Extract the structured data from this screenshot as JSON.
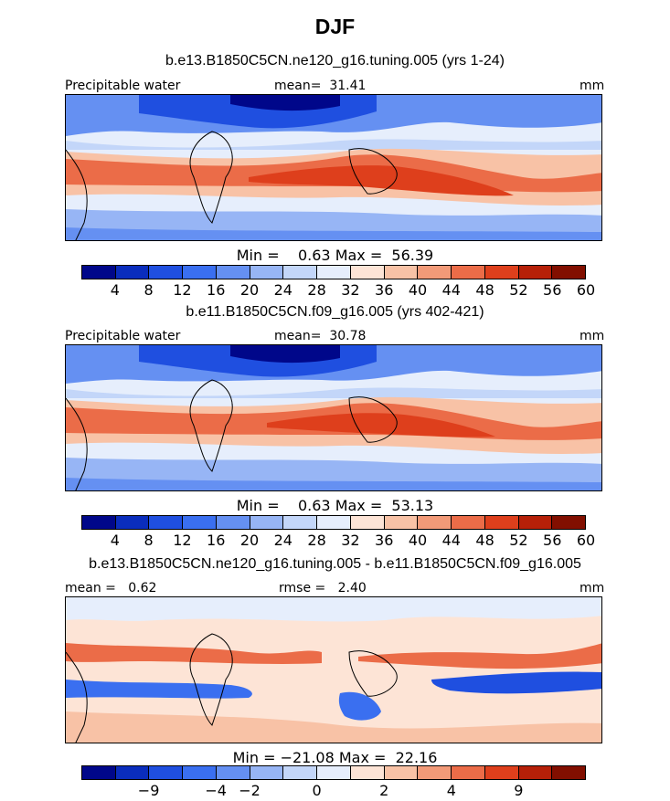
{
  "chart_data": [
    {
      "type": "heatmap",
      "season": "DJF",
      "title": "b.e13.B1850C5CN.ne120_g16.tuning.005 (yrs 1-24)",
      "variable": "Precipitable water",
      "mean_label": "mean=  31.41",
      "units": "mm",
      "min_max_label": "Min =    0.63 Max =  56.39",
      "colorbar_levels": [
        "4",
        "8",
        "12",
        "16",
        "20",
        "24",
        "28",
        "32",
        "36",
        "40",
        "44",
        "48",
        "52",
        "56",
        "60"
      ]
    },
    {
      "type": "heatmap",
      "title": "b.e11.B1850C5CN.f09_g16.005 (yrs 402-421)",
      "variable": "Precipitable water",
      "mean_label": "mean=  30.78",
      "units": "mm",
      "min_max_label": "Min =    0.63 Max =  53.13",
      "colorbar_levels": [
        "4",
        "8",
        "12",
        "16",
        "20",
        "24",
        "28",
        "32",
        "36",
        "40",
        "44",
        "48",
        "52",
        "56",
        "60"
      ]
    },
    {
      "type": "heatmap",
      "title": "b.e13.B1850C5CN.ne120_g16.tuning.005 - b.e11.B1850C5CN.f09_g16.005",
      "mean_label": "mean =   0.62",
      "rmse_label": "rmse =   2.40",
      "units": "mm",
      "min_max_label": "Min = −21.08 Max =  22.16",
      "colorbar_levels": [
        "−9",
        "−4",
        "−2",
        "0",
        "2",
        "4",
        "9"
      ]
    }
  ],
  "main_title": "DJF",
  "colors": {
    "palette": [
      "#00078a",
      "#0a2dbd",
      "#1f4fe0",
      "#3a6ff0",
      "#6590f2",
      "#97b5f5",
      "#c3d6f9",
      "#e6eefc",
      "#fde4d6",
      "#f8c2a6",
      "#f29a78",
      "#eb6c48",
      "#de3f1c",
      "#b62008",
      "#820f00"
    ]
  }
}
